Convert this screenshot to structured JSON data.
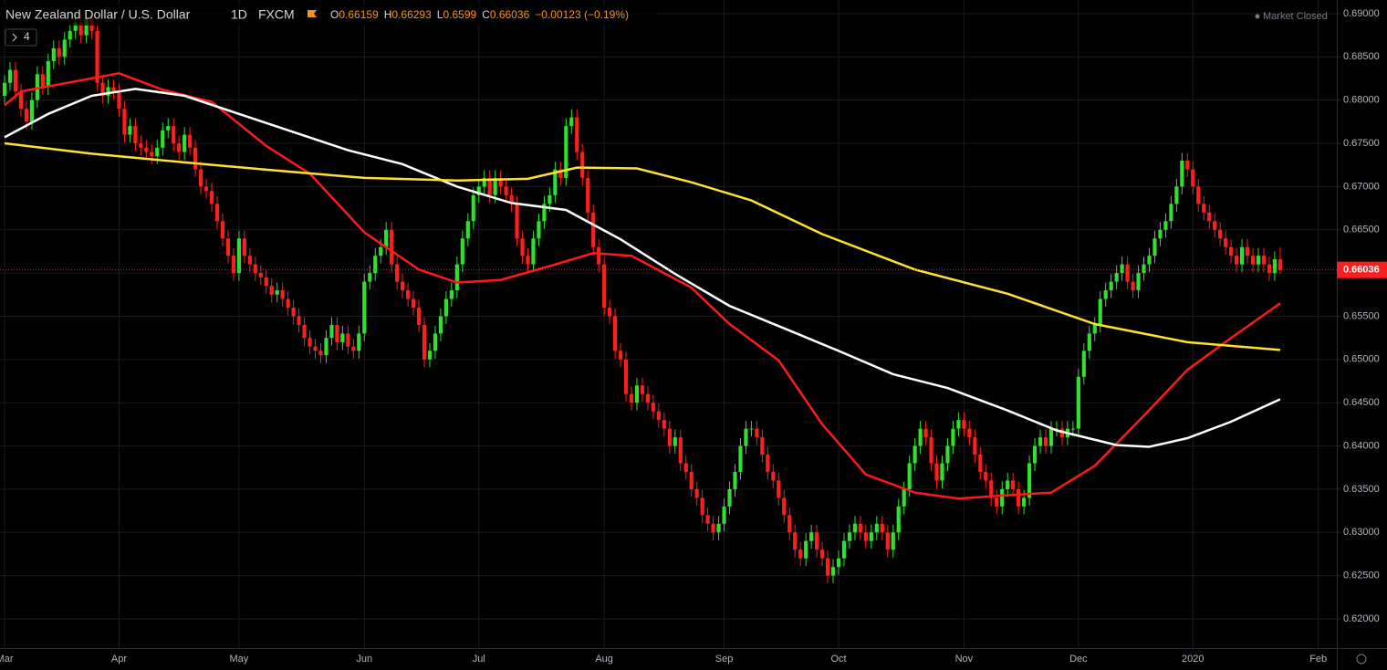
{
  "chart_data": {
    "type": "candlestick",
    "header": {
      "symbol": "New Zealand Dollar / U.S. Dollar",
      "interval": "1D",
      "exchange": "FXCM",
      "ohlc_labels": [
        "O",
        "H",
        "L",
        "C"
      ],
      "change": "−0.00123 (−0.19%)",
      "status": "Market Closed",
      "collapsed_count": "4"
    },
    "up_color": "#2fe02f",
    "down_color": "#ff1e1e",
    "grid": true,
    "xlim": [
      -0.84,
      244.4
    ],
    "xticks": [
      {
        "value": 0,
        "label": "Mar"
      },
      {
        "value": 21,
        "label": "Apr"
      },
      {
        "value": 43,
        "label": "May"
      },
      {
        "value": 66,
        "label": "Jun"
      },
      {
        "value": 87,
        "label": "Jul"
      },
      {
        "value": 110,
        "label": "Aug"
      },
      {
        "value": 132,
        "label": "Sep"
      },
      {
        "value": 153,
        "label": "Oct"
      },
      {
        "value": 176,
        "label": "Nov"
      },
      {
        "value": 197,
        "label": "Dec"
      },
      {
        "value": 218,
        "label": "2020"
      },
      {
        "value": 241,
        "label": "Feb"
      }
    ],
    "ylim": [
      0.61662,
      0.69158
    ],
    "yticks": [
      {
        "value": 0.62,
        "label": "0.62000"
      },
      {
        "value": 0.625,
        "label": "0.62500"
      },
      {
        "value": 0.63,
        "label": "0.63000"
      },
      {
        "value": 0.635,
        "label": "0.63500"
      },
      {
        "value": 0.64,
        "label": "0.64000"
      },
      {
        "value": 0.645,
        "label": "0.64500"
      },
      {
        "value": 0.65,
        "label": "0.65000"
      },
      {
        "value": 0.655,
        "label": "0.65500"
      },
      {
        "value": 0.66,
        "label": "0.66000"
      },
      {
        "value": 0.665,
        "label": "0.66500"
      },
      {
        "value": 0.67,
        "label": "0.67000"
      },
      {
        "value": 0.675,
        "label": "0.67500"
      },
      {
        "value": 0.68,
        "label": "0.68000"
      },
      {
        "value": 0.685,
        "label": "0.68500"
      },
      {
        "value": 0.69,
        "label": "0.69000"
      }
    ],
    "open": [
      0.6805,
      0.682,
      0.6835,
      0.681,
      0.679,
      0.6775,
      0.68,
      0.683,
      0.6815,
      0.6845,
      0.686,
      0.685,
      0.687,
      0.688,
      0.689,
      0.6875,
      0.6895,
      0.688,
      0.682,
      0.6805,
      0.6815,
      0.681,
      0.679,
      0.676,
      0.677,
      0.675,
      0.6745,
      0.674,
      0.6735,
      0.6745,
      0.6765,
      0.677,
      0.675,
      0.674,
      0.676,
      0.6745,
      0.672,
      0.67,
      0.6695,
      0.668,
      0.666,
      0.664,
      0.662,
      0.66,
      0.664,
      0.662,
      0.661,
      0.66,
      0.6595,
      0.6585,
      0.6575,
      0.658,
      0.657,
      0.656,
      0.655,
      0.654,
      0.6525,
      0.6515,
      0.651,
      0.6505,
      0.6525,
      0.654,
      0.652,
      0.653,
      0.6515,
      0.651,
      0.653,
      0.659,
      0.66,
      0.662,
      0.663,
      0.665,
      0.661,
      0.659,
      0.658,
      0.657,
      0.656,
      0.654,
      0.65,
      0.651,
      0.653,
      0.655,
      0.657,
      0.658,
      0.661,
      0.664,
      0.666,
      0.669,
      0.67,
      0.671,
      0.669,
      0.671,
      0.67,
      0.669,
      0.668,
      0.664,
      0.662,
      0.661,
      0.664,
      0.666,
      0.668,
      0.669,
      0.672,
      0.671,
      0.677,
      0.678,
      0.674,
      0.671,
      0.667,
      0.663,
      0.661,
      0.656,
      0.655,
      0.651,
      0.65,
      0.646,
      0.645,
      0.647,
      0.646,
      0.645,
      0.644,
      0.643,
      0.642,
      0.64,
      0.641,
      0.638,
      0.637,
      0.635,
      0.634,
      0.632,
      0.631,
      0.63,
      0.631,
      0.633,
      0.635,
      0.637,
      0.64,
      0.642,
      0.642,
      0.641,
      0.639,
      0.637,
      0.636,
      0.634,
      0.632,
      0.63,
      0.628,
      0.627,
      0.629,
      0.63,
      0.628,
      0.627,
      0.625,
      0.626,
      0.627,
      0.629,
      0.63,
      0.631,
      0.63,
      0.629,
      0.63,
      0.631,
      0.63,
      0.628,
      0.63,
      0.633,
      0.635,
      0.638,
      0.64,
      0.642,
      0.641,
      0.638,
      0.636,
      0.638,
      0.64,
      0.642,
      0.643,
      0.642,
      0.641,
      0.639,
      0.637,
      0.636,
      0.634,
      0.633,
      0.635,
      0.636,
      0.635,
      0.633,
      0.634,
      0.638,
      0.64,
      0.641,
      0.64,
      0.642,
      0.642,
      0.641,
      0.642,
      0.642,
      0.648,
      0.651,
      0.653,
      0.654,
      0.657,
      0.658,
      0.659,
      0.66,
      0.661,
      0.659,
      0.658,
      0.66,
      0.661,
      0.662,
      0.664,
      0.665,
      0.666,
      0.668,
      0.67,
      0.673,
      0.672,
      0.67,
      0.668,
      0.667,
      0.666,
      0.665,
      0.664,
      0.663,
      0.662,
      0.661,
      0.663,
      0.662,
      0.661,
      0.662,
      0.661,
      0.66,
      0.66159
    ],
    "high": [
      0.6829,
      0.6844,
      0.6844,
      0.6819,
      0.6799,
      0.6809,
      0.6839,
      0.6839,
      0.6854,
      0.6869,
      0.6869,
      0.6879,
      0.6889,
      0.6899,
      0.6899,
      0.6904,
      0.6904,
      0.6889,
      0.6829,
      0.6824,
      0.6824,
      0.6819,
      0.6799,
      0.6779,
      0.6779,
      0.6759,
      0.6754,
      0.6749,
      0.6754,
      0.6774,
      0.6779,
      0.6779,
      0.6759,
      0.6769,
      0.6769,
      0.6754,
      0.6729,
      0.6709,
      0.6704,
      0.6689,
      0.6669,
      0.6649,
      0.6629,
      0.6649,
      0.6649,
      0.6629,
      0.6619,
      0.6609,
      0.6604,
      0.6594,
      0.6589,
      0.6589,
      0.6579,
      0.6569,
      0.6559,
      0.6549,
      0.6534,
      0.6524,
      0.6519,
      0.6534,
      0.6549,
      0.6549,
      0.6539,
      0.6539,
      0.6524,
      0.6539,
      0.6599,
      0.6609,
      0.6629,
      0.6639,
      0.6659,
      0.6659,
      0.6619,
      0.6599,
      0.6589,
      0.6579,
      0.6569,
      0.6549,
      0.6519,
      0.6539,
      0.6559,
      0.6579,
      0.6589,
      0.6619,
      0.6649,
      0.6669,
      0.6699,
      0.6709,
      0.6719,
      0.6719,
      0.6719,
      0.6719,
      0.6709,
      0.6699,
      0.6689,
      0.6649,
      0.6629,
      0.6649,
      0.6669,
      0.6689,
      0.6699,
      0.6729,
      0.6729,
      0.6779,
      0.6789,
      0.6789,
      0.6749,
      0.6719,
      0.6679,
      0.6639,
      0.6619,
      0.6569,
      0.6559,
      0.6519,
      0.6509,
      0.6469,
      0.6479,
      0.6479,
      0.6469,
      0.6459,
      0.6449,
      0.6439,
      0.6429,
      0.6419,
      0.6419,
      0.6389,
      0.6379,
      0.6359,
      0.6349,
      0.6329,
      0.6319,
      0.6319,
      0.6339,
      0.6359,
      0.6379,
      0.6409,
      0.6429,
      0.6429,
      0.6429,
      0.6419,
      0.6399,
      0.6379,
      0.6369,
      0.6349,
      0.6329,
      0.6309,
      0.6289,
      0.6299,
      0.6309,
      0.6309,
      0.6289,
      0.6279,
      0.6269,
      0.6279,
      0.6299,
      0.6309,
      0.6319,
      0.6319,
      0.6309,
      0.6309,
      0.6319,
      0.6319,
      0.6309,
      0.6309,
      0.6339,
      0.6359,
      0.6389,
      0.6409,
      0.6429,
      0.6429,
      0.6419,
      0.6389,
      0.6389,
      0.6409,
      0.6429,
      0.6439,
      0.6439,
      0.6429,
      0.6419,
      0.6399,
      0.6379,
      0.6369,
      0.6349,
      0.6359,
      0.6369,
      0.6369,
      0.6359,
      0.6349,
      0.6389,
      0.6409,
      0.6419,
      0.6419,
      0.6429,
      0.6429,
      0.6429,
      0.6429,
      0.6429,
      0.6489,
      0.6519,
      0.6539,
      0.6549,
      0.6579,
      0.6589,
      0.6599,
      0.6609,
      0.6619,
      0.6619,
      0.6599,
      0.6609,
      0.6619,
      0.6629,
      0.6649,
      0.6659,
      0.6669,
      0.6689,
      0.6709,
      0.6739,
      0.6739,
      0.6729,
      0.6709,
      0.6689,
      0.6679,
      0.6669,
      0.6659,
      0.6649,
      0.6639,
      0.6629,
      0.6639,
      0.6639,
      0.6629,
      0.6629,
      0.6629,
      0.6619,
      0.6625,
      0.66293
    ],
    "low": [
      0.6796,
      0.6811,
      0.6801,
      0.6781,
      0.6766,
      0.6766,
      0.6791,
      0.6806,
      0.6806,
      0.6836,
      0.6841,
      0.6841,
      0.6861,
      0.6871,
      0.6866,
      0.6866,
      0.6871,
      0.6811,
      0.6796,
      0.6796,
      0.6801,
      0.6781,
      0.6751,
      0.6751,
      0.6741,
      0.6736,
      0.6731,
      0.6726,
      0.6726,
      0.6736,
      0.6756,
      0.6741,
      0.6731,
      0.6731,
      0.6736,
      0.6711,
      0.6691,
      0.6686,
      0.6671,
      0.6651,
      0.6631,
      0.6611,
      0.6591,
      0.6591,
      0.6611,
      0.6601,
      0.6591,
      0.6586,
      0.6576,
      0.6566,
      0.6566,
      0.6561,
      0.6551,
      0.6541,
      0.6531,
      0.6516,
      0.6506,
      0.6501,
      0.6496,
      0.6496,
      0.6516,
      0.6511,
      0.6511,
      0.6506,
      0.6501,
      0.6501,
      0.6521,
      0.6581,
      0.6591,
      0.6611,
      0.6621,
      0.6601,
      0.6581,
      0.6571,
      0.6561,
      0.6551,
      0.6531,
      0.6491,
      0.6491,
      0.6501,
      0.6521,
      0.6541,
      0.6561,
      0.6571,
      0.6601,
      0.6631,
      0.6651,
      0.6681,
      0.6691,
      0.6681,
      0.6681,
      0.6691,
      0.6681,
      0.6671,
      0.6631,
      0.6611,
      0.6601,
      0.6601,
      0.6631,
      0.6651,
      0.6671,
      0.6681,
      0.6701,
      0.6701,
      0.6761,
      0.6731,
      0.6701,
      0.6661,
      0.6621,
      0.6601,
      0.6551,
      0.6541,
      0.6501,
      0.6491,
      0.6451,
      0.6441,
      0.6441,
      0.6451,
      0.6441,
      0.6431,
      0.6421,
      0.6411,
      0.6391,
      0.6391,
      0.6371,
      0.6361,
      0.6341,
      0.6331,
      0.6311,
      0.6301,
      0.6291,
      0.6291,
      0.6301,
      0.6321,
      0.6341,
      0.6361,
      0.6391,
      0.6411,
      0.6401,
      0.6381,
      0.6361,
      0.6351,
      0.6331,
      0.6311,
      0.6291,
      0.6271,
      0.6261,
      0.6261,
      0.6281,
      0.6271,
      0.6261,
      0.6241,
      0.6241,
      0.6251,
      0.6261,
      0.6281,
      0.6291,
      0.6291,
      0.6281,
      0.6281,
      0.6291,
      0.6291,
      0.6271,
      0.6271,
      0.6291,
      0.6321,
      0.6341,
      0.6371,
      0.6391,
      0.6401,
      0.6371,
      0.6351,
      0.6351,
      0.6371,
      0.6391,
      0.6411,
      0.6411,
      0.6401,
      0.6381,
      0.6361,
      0.6351,
      0.6331,
      0.6321,
      0.6321,
      0.6341,
      0.6341,
      0.6321,
      0.6321,
      0.6331,
      0.6371,
      0.6391,
      0.6391,
      0.6391,
      0.6411,
      0.6401,
      0.6401,
      0.6411,
      0.6411,
      0.6471,
      0.6501,
      0.6521,
      0.6531,
      0.6561,
      0.6571,
      0.6581,
      0.6591,
      0.6581,
      0.6571,
      0.6571,
      0.6591,
      0.6601,
      0.6611,
      0.6631,
      0.6641,
      0.6651,
      0.6671,
      0.6691,
      0.6711,
      0.6691,
      0.6671,
      0.6661,
      0.6651,
      0.6641,
      0.6631,
      0.6621,
      0.6611,
      0.6601,
      0.6601,
      0.6611,
      0.6601,
      0.6601,
      0.6601,
      0.6591,
      0.6591,
      0.6599
    ],
    "close": [
      0.682,
      0.6835,
      0.681,
      0.679,
      0.6775,
      0.68,
      0.683,
      0.6815,
      0.6845,
      0.686,
      0.685,
      0.687,
      0.688,
      0.689,
      0.6875,
      0.6895,
      0.688,
      0.682,
      0.6805,
      0.6815,
      0.681,
      0.679,
      0.676,
      0.677,
      0.675,
      0.6745,
      0.674,
      0.6735,
      0.6745,
      0.6765,
      0.677,
      0.675,
      0.674,
      0.676,
      0.6745,
      0.672,
      0.67,
      0.6695,
      0.668,
      0.666,
      0.664,
      0.662,
      0.66,
      0.664,
      0.662,
      0.661,
      0.66,
      0.6595,
      0.6585,
      0.6575,
      0.658,
      0.657,
      0.656,
      0.655,
      0.654,
      0.6525,
      0.6515,
      0.651,
      0.6505,
      0.6525,
      0.654,
      0.652,
      0.653,
      0.6515,
      0.651,
      0.653,
      0.659,
      0.66,
      0.662,
      0.663,
      0.665,
      0.661,
      0.659,
      0.658,
      0.657,
      0.656,
      0.654,
      0.65,
      0.651,
      0.653,
      0.655,
      0.657,
      0.658,
      0.661,
      0.664,
      0.666,
      0.669,
      0.67,
      0.671,
      0.669,
      0.671,
      0.67,
      0.669,
      0.668,
      0.664,
      0.662,
      0.661,
      0.664,
      0.666,
      0.668,
      0.669,
      0.672,
      0.671,
      0.677,
      0.678,
      0.674,
      0.671,
      0.667,
      0.663,
      0.661,
      0.656,
      0.655,
      0.651,
      0.65,
      0.646,
      0.645,
      0.647,
      0.646,
      0.645,
      0.644,
      0.643,
      0.642,
      0.64,
      0.641,
      0.638,
      0.637,
      0.635,
      0.634,
      0.632,
      0.631,
      0.63,
      0.631,
      0.633,
      0.635,
      0.637,
      0.64,
      0.642,
      0.642,
      0.641,
      0.639,
      0.637,
      0.636,
      0.634,
      0.632,
      0.63,
      0.628,
      0.627,
      0.629,
      0.63,
      0.628,
      0.627,
      0.625,
      0.626,
      0.627,
      0.629,
      0.63,
      0.631,
      0.63,
      0.629,
      0.63,
      0.631,
      0.63,
      0.628,
      0.63,
      0.633,
      0.635,
      0.638,
      0.64,
      0.642,
      0.641,
      0.638,
      0.636,
      0.638,
      0.64,
      0.642,
      0.643,
      0.642,
      0.641,
      0.639,
      0.637,
      0.636,
      0.634,
      0.633,
      0.635,
      0.636,
      0.635,
      0.633,
      0.634,
      0.638,
      0.64,
      0.641,
      0.64,
      0.642,
      0.642,
      0.641,
      0.642,
      0.642,
      0.648,
      0.651,
      0.653,
      0.654,
      0.657,
      0.658,
      0.659,
      0.66,
      0.661,
      0.659,
      0.658,
      0.66,
      0.661,
      0.662,
      0.664,
      0.665,
      0.666,
      0.668,
      0.67,
      0.673,
      0.672,
      0.67,
      0.668,
      0.667,
      0.666,
      0.665,
      0.664,
      0.663,
      0.662,
      0.661,
      0.663,
      0.662,
      0.661,
      0.662,
      0.661,
      0.66,
      0.6616,
      0.66036
    ],
    "lines": [
      {
        "color": "#ff1a1a",
        "x": [
          0,
          3,
          21,
          29,
          38,
          48,
          56,
          66,
          76,
          83,
          91,
          100,
          108,
          115,
          126,
          133,
          142,
          150,
          158,
          167,
          175,
          184,
          192,
          200,
          209,
          217,
          225,
          234
        ],
        "values": [
          0.6794,
          0.681,
          0.6831,
          0.6812,
          0.6798,
          0.6747,
          0.6715,
          0.6647,
          0.6604,
          0.6589,
          0.6592,
          0.6608,
          0.6623,
          0.662,
          0.6583,
          0.6541,
          0.6499,
          0.6425,
          0.6367,
          0.6346,
          0.6339,
          0.6343,
          0.6346,
          0.6377,
          0.6435,
          0.6488,
          0.6525,
          0.6565
        ]
      },
      {
        "color": "#ffffff",
        "x": [
          0,
          8,
          16,
          24,
          33,
          43,
          53,
          63,
          73,
          83,
          93,
          103,
          113,
          123,
          133,
          143,
          153,
          163,
          173,
          184,
          193,
          204,
          210,
          217,
          225,
          234
        ],
        "values": [
          0.6757,
          0.6784,
          0.6805,
          0.6813,
          0.6805,
          0.6784,
          0.6763,
          0.6742,
          0.6726,
          0.67,
          0.6681,
          0.6673,
          0.6639,
          0.6599,
          0.6562,
          0.6536,
          0.651,
          0.6483,
          0.6467,
          0.6441,
          0.6418,
          0.6401,
          0.6399,
          0.6409,
          0.6428,
          0.6454
        ]
      },
      {
        "color": "#ffe033",
        "x": [
          0,
          16,
          33,
          49,
          66,
          83,
          96,
          105,
          116,
          126,
          137,
          150,
          167,
          184,
          200,
          217,
          234
        ],
        "values": [
          0.675,
          0.6738,
          0.6728,
          0.6719,
          0.671,
          0.6707,
          0.6709,
          0.6722,
          0.6721,
          0.6705,
          0.6684,
          0.6645,
          0.6604,
          0.6576,
          0.6541,
          0.652,
          0.6511
        ]
      }
    ]
  }
}
